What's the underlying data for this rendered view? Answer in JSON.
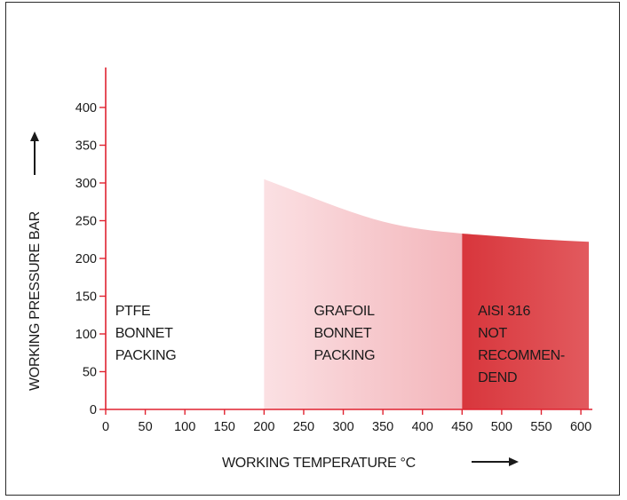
{
  "chart_data": {
    "type": "area",
    "xlabel": "WORKING TEMPERATURE °C",
    "ylabel": "WORKING PRESSURE BAR",
    "xlim": [
      0,
      610
    ],
    "ylim": [
      0,
      400
    ],
    "x_ticks": [
      0,
      50,
      100,
      150,
      200,
      250,
      300,
      350,
      400,
      450,
      500,
      550,
      600
    ],
    "y_ticks": [
      0,
      50,
      100,
      150,
      200,
      250,
      300,
      350,
      400
    ],
    "grid": false,
    "series": [
      {
        "x": [
          200,
          250,
          300,
          350,
          400,
          450
        ],
        "y": [
          305,
          285,
          265,
          248,
          238,
          233
        ]
      },
      {
        "x": [
          450,
          500,
          550,
          610
        ],
        "y": [
          233,
          229,
          225,
          222
        ]
      }
    ],
    "regions": [
      {
        "label_lines": [
          "PTFE",
          "BONNET",
          "PACKING"
        ],
        "x_range": [
          0,
          200
        ],
        "color": "#ffffff"
      },
      {
        "label_lines": [
          "GRAFOIL",
          "BONNET",
          "PACKING"
        ],
        "x_range": [
          200,
          450
        ],
        "color": "#f6c6ca"
      },
      {
        "label_lines": [
          "AISI 316",
          "NOT",
          "RECOMMEN-",
          "DEND"
        ],
        "x_range": [
          450,
          610
        ],
        "color": "#e04a4e"
      }
    ],
    "colors": {
      "axis": "#e02330",
      "text": "#1a1a1a"
    }
  }
}
